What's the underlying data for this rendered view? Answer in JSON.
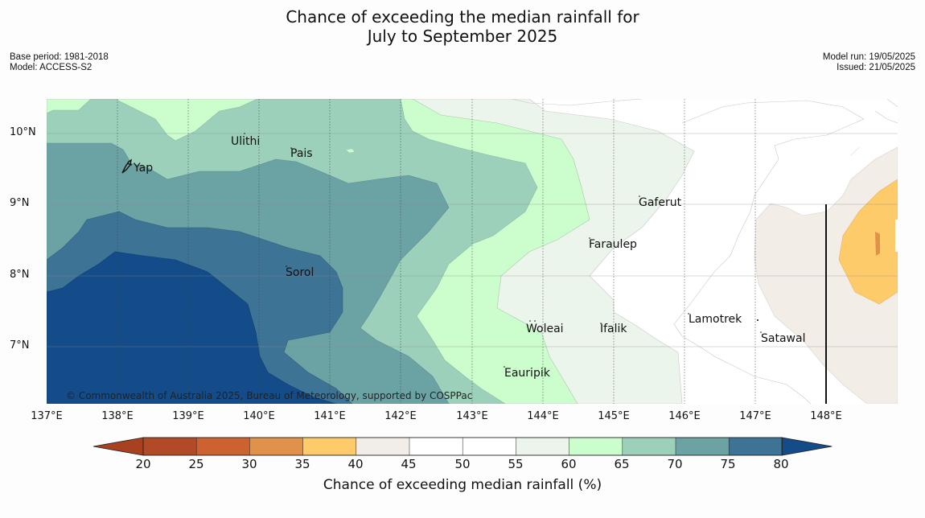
{
  "header": {
    "title_line1": "Chance of exceeding the median rainfall for",
    "title_line2": "July to September 2025",
    "base_period": "Base period: 1981-2018",
    "model": "Model: ACCESS-S2",
    "model_run": "Model run: 19/05/2025",
    "issued": "Issued: 21/05/2025"
  },
  "map": {
    "lat_labels": [
      "10°N",
      "9°N",
      "8°N",
      "7°N"
    ],
    "lon_labels": [
      "137°E",
      "138°E",
      "139°E",
      "140°E",
      "141°E",
      "142°E",
      "143°E",
      "144°E",
      "145°E",
      "146°E",
      "147°E",
      "148°E"
    ],
    "places": [
      "Yap",
      "Ulithi",
      "Pais",
      "Gaferut",
      "Faraulep",
      "Sorol",
      "Woleai",
      "Ifalik",
      "Lamotrek",
      "Satawal",
      "Eauripik"
    ],
    "copyright": "© Commonwealth of Australia 2025, Bureau of Meteorology, supported by COSPPac"
  },
  "colorbar": {
    "ticks": [
      "20",
      "25",
      "30",
      "35",
      "40",
      "45",
      "50",
      "55",
      "60",
      "65",
      "70",
      "75",
      "80"
    ],
    "label": "Chance of exceeding median rainfall (%)",
    "colors": [
      "#a9401f",
      "#b24a27",
      "#cc622f",
      "#e0914a",
      "#fdcb6a",
      "#f2ede7",
      "#ffffff",
      "#ffffff",
      "#ecf5eb",
      "#ccfdcc",
      "#9dd0ba",
      "#6ba3a5",
      "#3d7395",
      "#134c88"
    ]
  }
}
